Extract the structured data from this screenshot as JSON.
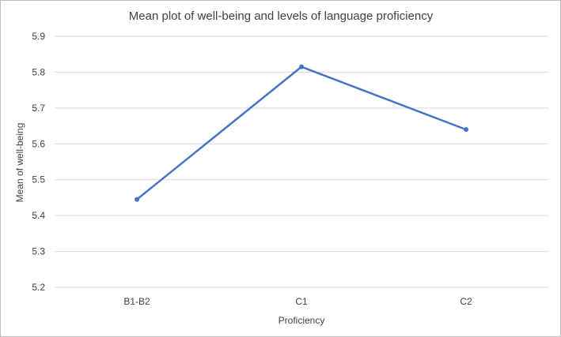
{
  "chart_data": {
    "type": "line",
    "title": "Mean plot of well-being and levels of language proficiency",
    "xlabel": "Proficiency",
    "ylabel": "Mean of well-being",
    "categories": [
      "B1-B2",
      "C1",
      "C2"
    ],
    "series": [
      {
        "values": [
          5.445,
          5.815,
          5.64
        ],
        "color": "#4472c4"
      }
    ],
    "ylim": [
      5.2,
      5.9
    ],
    "yticks": [
      "5.2",
      "5.3",
      "5.4",
      "5.5",
      "5.6",
      "5.7",
      "5.8",
      "5.9"
    ],
    "grid": true,
    "legend": "none"
  }
}
